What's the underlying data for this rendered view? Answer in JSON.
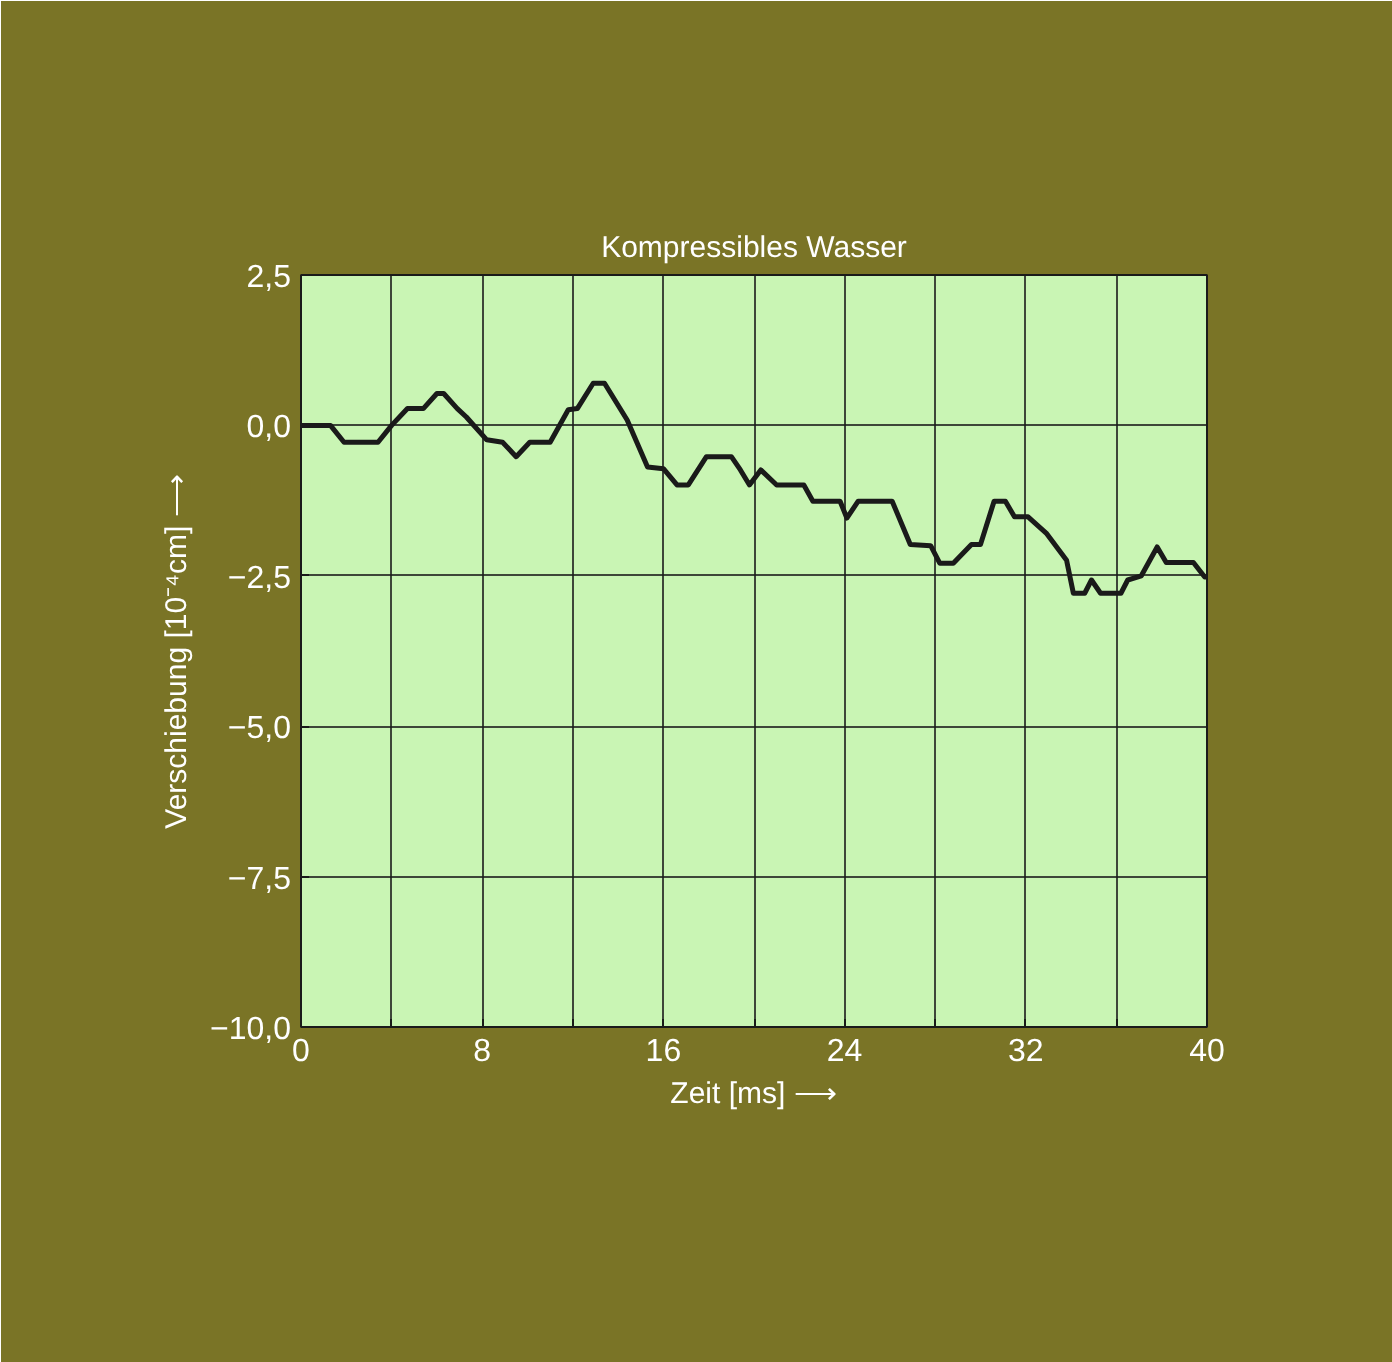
{
  "chart_data": {
    "type": "line",
    "title": "Kompressibles Wasser",
    "xlabel": "Zeit [ms] ⟶",
    "ylabel": "Verschiebung [10⁻⁴cm] ⟶",
    "x": [
      0,
      1.3,
      1.9,
      3.4,
      4.0,
      4.7,
      5.4,
      6.0,
      6.3,
      6.9,
      7.3,
      8.2,
      8.9,
      9.5,
      10.1,
      11.0,
      11.8,
      12.2,
      12.9,
      13.4,
      14.4,
      15.3,
      16.0,
      16.6,
      17.1,
      17.9,
      19.0,
      19.4,
      19.8,
      20.3,
      21.0,
      22.2,
      22.6,
      23.8,
      24.1,
      24.6,
      26.1,
      26.9,
      27.8,
      28.2,
      28.8,
      29.6,
      30.0,
      30.6,
      31.1,
      31.5,
      32.1,
      32.9,
      33.8,
      34.1,
      34.6,
      34.9,
      35.3,
      36.2,
      36.5,
      37.1,
      37.8,
      38.2,
      39.4,
      39.9,
      40
    ],
    "series": [
      {
        "color": "#1a1a1a",
        "values": [
          0,
          0,
          -0.28,
          -0.28,
          0,
          0.28,
          0.28,
          0.53,
          0.53,
          0.28,
          0.14,
          -0.24,
          -0.28,
          -0.52,
          -0.28,
          -0.28,
          0.26,
          0.28,
          0.7,
          0.7,
          0.09,
          -0.69,
          -0.72,
          -0.99,
          -0.99,
          -0.52,
          -0.52,
          -0.74,
          -0.99,
          -0.74,
          -0.99,
          -0.99,
          -1.26,
          -1.26,
          -1.54,
          -1.26,
          -1.26,
          -1.98,
          -2.0,
          -2.29,
          -2.29,
          -1.98,
          -1.98,
          -1.26,
          -1.26,
          -1.52,
          -1.52,
          -1.79,
          -2.24,
          -2.79,
          -2.79,
          -2.57,
          -2.79,
          -2.79,
          -2.57,
          -2.5,
          -2.02,
          -2.28,
          -2.28,
          -2.52,
          -2.52
        ]
      }
    ],
    "xlim": [
      0,
      40
    ],
    "ylim": [
      -10,
      2.5
    ],
    "xticks": [
      0,
      {
        "value": 4,
        "label": null
      },
      8,
      {
        "value": 12,
        "label": null
      },
      16,
      {
        "value": 20,
        "label": null
      },
      24,
      {
        "value": 28,
        "label": null
      },
      32,
      {
        "value": 36,
        "label": null
      },
      40
    ],
    "yticks": [
      {
        "value": -10,
        "label": "−10,0"
      },
      {
        "value": -7.5,
        "label": "−7,5"
      },
      {
        "value": -5,
        "label": "−5,0"
      },
      {
        "value": -2.5,
        "label": "−2,5"
      },
      {
        "value": 0,
        "label": "0,0"
      },
      {
        "value": 2.5,
        "label": "2,5"
      }
    ],
    "grid": true,
    "marker": "none",
    "line_style": "solid"
  }
}
